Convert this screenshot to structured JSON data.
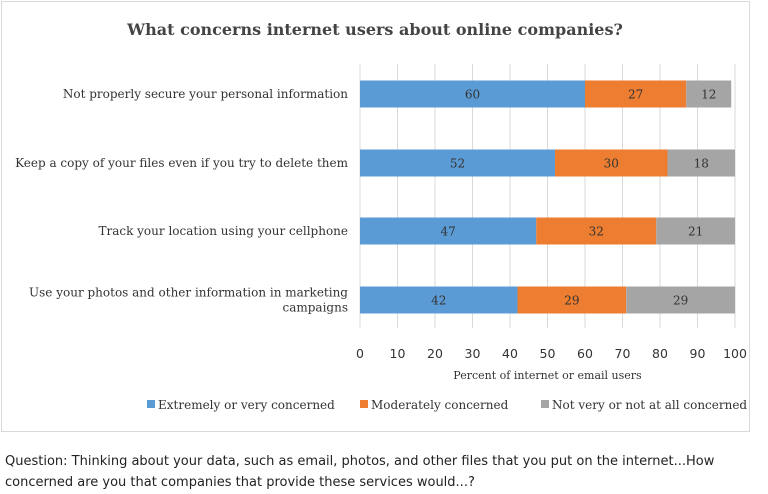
{
  "chart_data": {
    "type": "bar",
    "orientation": "horizontal",
    "stacked": true,
    "title": "What concerns internet users about online companies?",
    "xlabel": "Percent of internet or email users",
    "ylabel": "",
    "xlim": [
      0,
      100
    ],
    "xticks": [
      0,
      10,
      20,
      30,
      40,
      50,
      60,
      70,
      80,
      90,
      100
    ],
    "grid": true,
    "legend_position": "bottom",
    "categories": [
      "Not properly secure your personal information",
      "Keep a copy of your files even if you try to delete them",
      "Track your location using your cellphone",
      "Use your photos and other information in marketing campaigns"
    ],
    "category_lines": [
      [
        "Not properly secure your personal information"
      ],
      [
        "Keep a copy of your files even if you try to delete them"
      ],
      [
        "Track your location using your cellphone"
      ],
      [
        "Use your photos and other information in marketing",
        "campaigns"
      ]
    ],
    "series": [
      {
        "name": "Extremely or very concerned",
        "values": [
          60,
          52,
          47,
          42
        ],
        "color": "#5b9bd5"
      },
      {
        "name": "Moderately concerned",
        "values": [
          27,
          30,
          32,
          29
        ],
        "color": "#ed7d31"
      },
      {
        "name": "Not very or not at all concerned",
        "values": [
          12,
          18,
          21,
          29
        ],
        "color": "#a5a5a5"
      }
    ]
  },
  "footer": {
    "question": "Question: Thinking about your data, such as email, photos, and other files that you put on the internet...How concerned are you that companies that provide these services would...?"
  }
}
